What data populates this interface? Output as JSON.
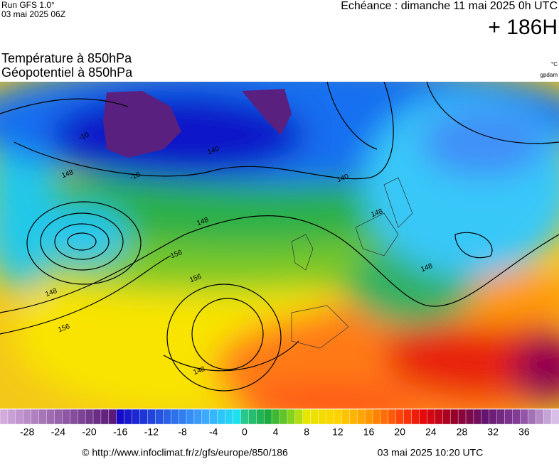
{
  "header": {
    "run": "Run GFS 1.0°",
    "run_date": "03 mai 2025 06Z",
    "valid": "Echéance : dimanche 11 mai 2025 0h UTC",
    "lead": "+ 186H"
  },
  "titles": [
    "Température à 850hPa",
    "Géopotentiel à 850hPa"
  ],
  "units": [
    "°C",
    "gpdam"
  ],
  "map": {
    "contour_labels": [
      -10,
      -10,
      140,
      140,
      148,
      148,
      148,
      148,
      148,
      148,
      156,
      156,
      156
    ]
  },
  "colorbar": {
    "range": [
      -31,
      40
    ],
    "ticks": [
      -28,
      -24,
      -20,
      -16,
      -12,
      -8,
      -4,
      0,
      4,
      8,
      12,
      16,
      20,
      24,
      28,
      32,
      36
    ]
  },
  "footer": {
    "url": "© http://www.infoclimat.fr/z/gfs/europe/850/186",
    "date": "03 mai 2025 10:20 UTC"
  }
}
